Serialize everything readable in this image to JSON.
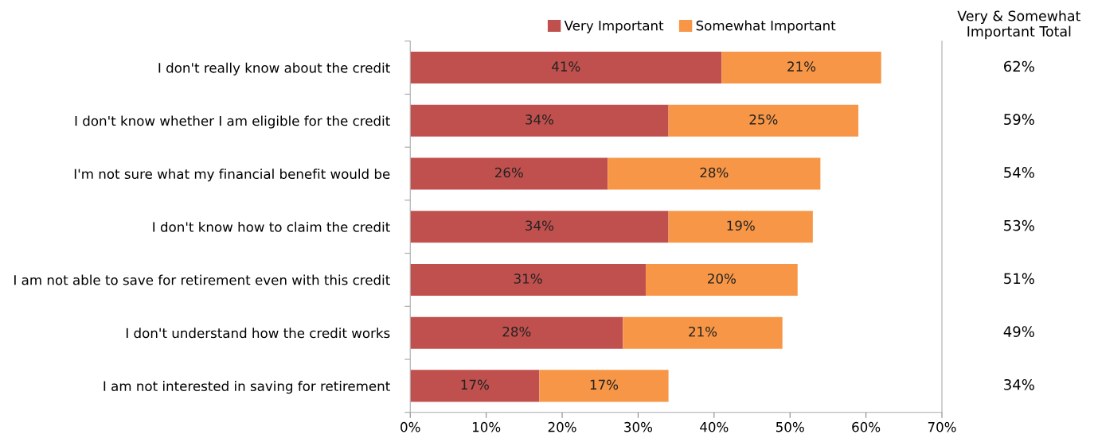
{
  "chart_data": {
    "type": "bar",
    "orientation": "horizontal",
    "stacked": true,
    "categories": [
      "I don't really know about the credit",
      "I don't know whether I am eligible for the credit",
      "I'm not sure what my financial benefit would be",
      "I don't know how to claim the credit",
      "I am not able to save for retirement even with this credit",
      "I don't understand how the credit works",
      "I am not interested in saving for retirement"
    ],
    "series": [
      {
        "name": "Very Important",
        "color": "#c0504d",
        "values": [
          41,
          34,
          26,
          34,
          31,
          28,
          17
        ],
        "value_labels": [
          "41%",
          "34%",
          "26%",
          "34%",
          "31%",
          "28%",
          "17%"
        ]
      },
      {
        "name": "Somewhat Important",
        "color": "#f79646",
        "values": [
          21,
          25,
          28,
          19,
          20,
          21,
          17
        ],
        "value_labels": [
          "21%",
          "25%",
          "28%",
          "19%",
          "20%",
          "21%",
          "17%"
        ]
      }
    ],
    "annotations": [
      "Very & Somewhat\nImportant Total",
      "62%",
      "59%",
      "54%",
      "53%",
      "51%",
      "49%",
      "34%"
    ],
    "xlim": [
      0,
      70
    ],
    "xticks": [
      {
        "value": 0,
        "label": "0%"
      },
      {
        "value": 10,
        "label": "10%"
      },
      {
        "value": 20,
        "label": "20%"
      },
      {
        "value": 30,
        "label": "30%"
      },
      {
        "value": 40,
        "label": "40%"
      },
      {
        "value": 50,
        "label": "50%"
      },
      {
        "value": 60,
        "label": "60%"
      },
      {
        "value": 70,
        "label": "70%"
      }
    ],
    "legend": "top",
    "grid": false
  }
}
